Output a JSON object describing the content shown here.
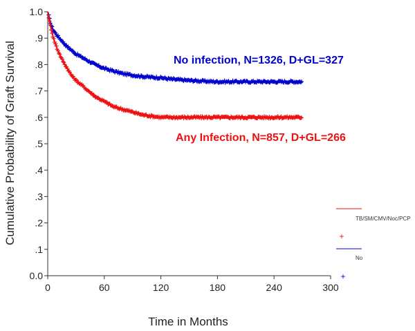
{
  "chart_data": {
    "type": "line",
    "subtype": "kaplan-meier survival curve",
    "xlabel": "Time in Months",
    "ylabel": "Cumulative Probability of Graft Survival",
    "xlim": [
      0,
      300
    ],
    "ylim": [
      0,
      1
    ],
    "x_ticks": [
      "0",
      "60",
      "120",
      "180",
      "240",
      "300"
    ],
    "y_ticks": [
      "0.0",
      ".1",
      ".2",
      ".3",
      ".4",
      ".5",
      ".6",
      ".7",
      ".8",
      ".9",
      "1.0"
    ],
    "grid": false,
    "series": [
      {
        "name": "No",
        "color": "#0000cc",
        "annotation": "No infection, N=1326, D+GL=327",
        "x": [
          0,
          2,
          4,
          6,
          8,
          10,
          15,
          20,
          25,
          30,
          40,
          50,
          60,
          70,
          80,
          90,
          100,
          110,
          120,
          130,
          140,
          150,
          160,
          170,
          180,
          200,
          220,
          240,
          260,
          270
        ],
        "y": [
          1.0,
          0.97,
          0.945,
          0.93,
          0.92,
          0.91,
          0.89,
          0.87,
          0.855,
          0.84,
          0.82,
          0.8,
          0.785,
          0.775,
          0.765,
          0.76,
          0.755,
          0.752,
          0.75,
          0.745,
          0.742,
          0.74,
          0.738,
          0.736,
          0.735,
          0.735,
          0.735,
          0.735,
          0.735,
          0.735
        ]
      },
      {
        "name": "TB/SM/CMV/Noc/PCP",
        "color": "#ee1111",
        "annotation": "Any Infection, N=857, D+GL=266",
        "x": [
          0,
          2,
          4,
          6,
          8,
          10,
          15,
          20,
          25,
          30,
          40,
          50,
          60,
          70,
          80,
          90,
          100,
          110,
          120,
          140,
          160,
          180,
          200,
          220,
          240,
          260,
          270
        ],
        "y": [
          1.0,
          0.96,
          0.93,
          0.9,
          0.88,
          0.86,
          0.82,
          0.79,
          0.76,
          0.74,
          0.71,
          0.68,
          0.66,
          0.64,
          0.63,
          0.62,
          0.61,
          0.605,
          0.6,
          0.6,
          0.6,
          0.6,
          0.6,
          0.6,
          0.6,
          0.6,
          0.6
        ]
      }
    ],
    "legend": {
      "position": "right",
      "entries": [
        "TB/SM/CMV/Noc/PCP",
        "No"
      ]
    }
  }
}
